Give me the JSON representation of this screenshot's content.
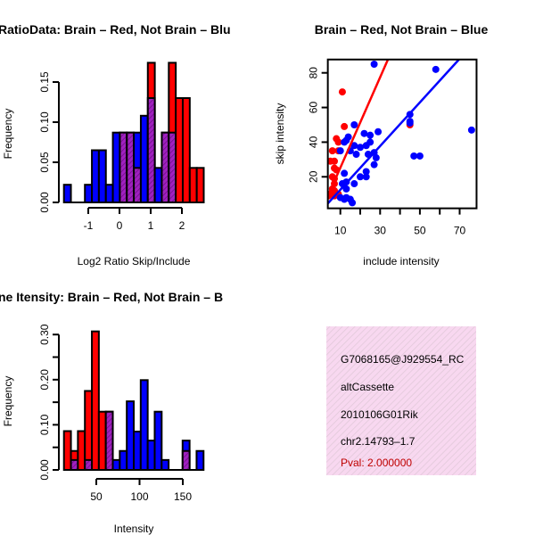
{
  "colors": {
    "red": "#ff0000",
    "blue": "#0000ff",
    "overlap": "#a020c0",
    "pval": "#c00000",
    "panel_bg": "#f8d8f0"
  },
  "chart_data": [
    {
      "type": "bar",
      "title": "RatioData: Brain – Red, Not Brain – Blu",
      "xlabel": "Log2 Ratio Skip/Include",
      "ylabel": "Frequency",
      "bin_start": -1.78,
      "bin_width": 0.224,
      "xticks": [
        "-1",
        "0",
        "1",
        "2"
      ],
      "xtick_values": [
        -1,
        0,
        1,
        2
      ],
      "yticks": [
        "0.00",
        "0.05",
        "0.10",
        "0.15"
      ],
      "ytick_values": [
        0,
        0.05,
        0.1,
        0.15
      ],
      "series": [
        {
          "name": "Brain",
          "color": "red",
          "values": [
            0,
            0,
            0,
            0,
            0,
            0,
            0,
            0,
            0.087,
            0.087,
            0.043,
            0,
            0.174,
            0,
            0.087,
            0.174,
            0.13,
            0.13,
            0.043,
            0.043
          ]
        },
        {
          "name": "Not Brain",
          "color": "blue",
          "values": [
            0.022,
            0,
            0,
            0.022,
            0.065,
            0.065,
            0.022,
            0.087,
            0.087,
            0.087,
            0.087,
            0.108,
            0.13,
            0.043,
            0.087,
            0.087,
            0,
            0,
            0,
            0
          ]
        }
      ]
    },
    {
      "type": "scatter",
      "title": "Brain – Red, Not Brain – Blue",
      "xlabel": "include intensity",
      "ylabel": "skip intensity",
      "xlim": [
        3.7,
        78.5
      ],
      "ylim": [
        1.8,
        87.7
      ],
      "xticks": [
        "10",
        "30",
        "50",
        "70"
      ],
      "xtick_values": [
        10,
        30,
        50,
        70
      ],
      "xminor_ticks": [
        20,
        40,
        60
      ],
      "yticks": [
        "20",
        "40",
        "60",
        "80"
      ],
      "ytick_values": [
        20,
        40,
        60,
        80
      ],
      "series": [
        {
          "name": "Brain",
          "color": "red",
          "points": [
            [
              11,
              69
            ],
            [
              12,
              49
            ],
            [
              45,
              50
            ],
            [
              8,
              42
            ],
            [
              9,
              40
            ],
            [
              6,
              35
            ],
            [
              9,
              35
            ],
            [
              5,
              29
            ],
            [
              7,
              29
            ],
            [
              7,
              25
            ],
            [
              8,
              24
            ],
            [
              6,
              20
            ],
            [
              7,
              19
            ],
            [
              7,
              16
            ],
            [
              6,
              13
            ],
            [
              7,
              12
            ],
            [
              5,
              10
            ],
            [
              4,
              9
            ],
            [
              7,
              9
            ],
            [
              9,
              10
            ]
          ],
          "fit": {
            "slope": 2.61,
            "intercept": -0.86
          }
        },
        {
          "name": "Not Brain",
          "color": "blue",
          "points": [
            [
              27,
              85
            ],
            [
              58,
              82
            ],
            [
              76,
              47
            ],
            [
              45,
              56
            ],
            [
              45,
              52
            ],
            [
              45,
              51
            ],
            [
              47,
              32
            ],
            [
              50,
              32
            ],
            [
              29,
              46
            ],
            [
              17,
              50
            ],
            [
              22,
              45
            ],
            [
              25,
              44
            ],
            [
              14,
              43
            ],
            [
              13,
              41
            ],
            [
              12,
              40
            ],
            [
              17,
              38
            ],
            [
              20,
              37
            ],
            [
              23,
              38
            ],
            [
              25,
              40
            ],
            [
              15,
              35
            ],
            [
              10,
              35
            ],
            [
              18,
              33
            ],
            [
              24,
              33
            ],
            [
              27,
              34
            ],
            [
              28,
              31
            ],
            [
              27,
              27
            ],
            [
              12,
              22
            ],
            [
              13,
              17
            ],
            [
              11,
              16
            ],
            [
              13,
              13
            ],
            [
              20,
              20
            ],
            [
              17,
              16
            ],
            [
              23,
              23
            ],
            [
              23,
              20
            ],
            [
              10,
              8
            ],
            [
              13,
              8
            ],
            [
              15,
              7
            ],
            [
              16,
              5
            ],
            [
              12,
              7
            ]
          ],
          "fit": {
            "slope": 1.26,
            "intercept": -0.06
          }
        }
      ]
    },
    {
      "type": "bar",
      "title": "ne Itensity: Brain – Red, Not Brain – B",
      "xlabel": "Intensity",
      "ylabel": "Frequency",
      "bin_start": 12.6,
      "bin_width": 8.07,
      "xticks": [
        "50",
        "100",
        "150"
      ],
      "xtick_values": [
        50,
        100,
        150
      ],
      "yticks": [
        "0.00",
        "0.10",
        "0.20",
        "0.30"
      ],
      "ytick_values": [
        0,
        0.1,
        0.2,
        0.3
      ],
      "yminor_ticks": [
        0.05,
        0.15,
        0.25
      ],
      "series": [
        {
          "name": "Brain",
          "color": "red",
          "values": [
            0.086,
            0.042,
            0.086,
            0.175,
            0.307,
            0.129,
            0.129,
            0,
            0,
            0,
            0,
            0,
            0,
            0,
            0,
            0,
            0,
            0.042,
            0,
            0
          ]
        },
        {
          "name": "Not Brain",
          "color": "blue",
          "values": [
            0,
            0.022,
            0,
            0.022,
            0,
            0,
            0.129,
            0.022,
            0.042,
            0.152,
            0.085,
            0.199,
            0.065,
            0.129,
            0.022,
            0,
            0,
            0.065,
            0,
            0.042
          ]
        }
      ]
    }
  ],
  "info_panel": {
    "lines": [
      "G7068165@J929554_RC",
      "altCassette",
      "2010106G01Rik",
      "chr2.14793–1.7"
    ],
    "pval": "Pval: 2.000000"
  }
}
